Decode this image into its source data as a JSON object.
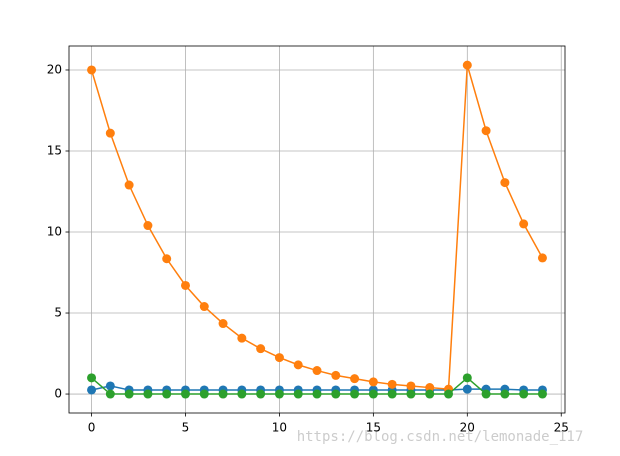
{
  "chart_data": {
    "type": "line",
    "x": [
      0,
      1,
      2,
      3,
      4,
      5,
      6,
      7,
      8,
      9,
      10,
      11,
      12,
      13,
      14,
      15,
      16,
      17,
      18,
      19,
      20,
      21,
      22,
      23,
      24
    ],
    "series": [
      {
        "color": "#1f77b4",
        "values": [
          0.25,
          0.5,
          0.25,
          0.25,
          0.25,
          0.25,
          0.25,
          0.25,
          0.25,
          0.25,
          0.25,
          0.25,
          0.25,
          0.25,
          0.25,
          0.25,
          0.25,
          0.25,
          0.25,
          0.25,
          0.3,
          0.3,
          0.3,
          0.25,
          0.25
        ]
      },
      {
        "color": "#ff7f0e",
        "values": [
          20,
          16.1,
          12.9,
          10.4,
          8.35,
          6.7,
          5.4,
          4.35,
          3.45,
          2.8,
          2.25,
          1.8,
          1.45,
          1.15,
          0.95,
          0.75,
          0.6,
          0.5,
          0.4,
          0.3,
          20.3,
          16.25,
          13.05,
          10.5,
          8.4
        ]
      },
      {
        "color": "#2ca02c",
        "values": [
          1,
          0,
          0,
          0,
          0,
          0,
          0,
          0,
          0,
          0,
          0,
          0,
          0,
          0,
          0,
          0,
          0,
          0,
          0,
          0,
          1,
          0,
          0,
          0,
          0
        ]
      }
    ],
    "xlim": [
      -1.2,
      25.2
    ],
    "ylim": [
      -1.17,
      21.48
    ],
    "xticks": [
      0,
      5,
      10,
      15,
      20,
      25
    ],
    "yticks": [
      0,
      5,
      10,
      15,
      20
    ],
    "grid": true,
    "watermark": "https://blog.csdn.net/lemonade_117"
  }
}
